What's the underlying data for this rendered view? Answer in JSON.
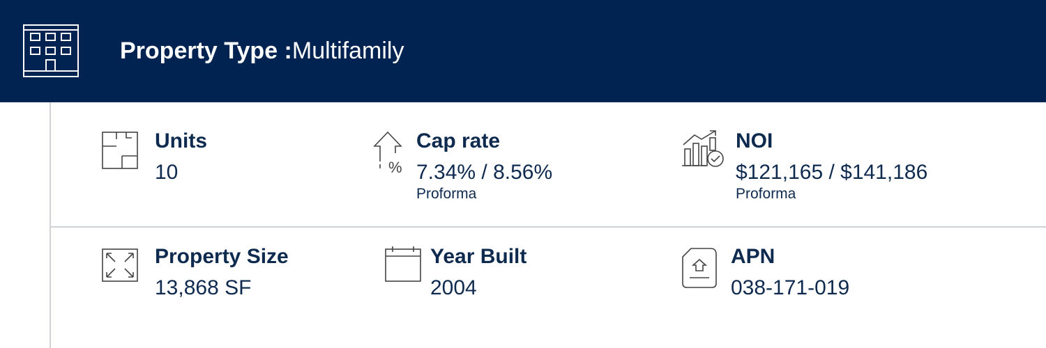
{
  "header": {
    "label": "Property Type :",
    "value": "Multifamily"
  },
  "rows": [
    [
      {
        "label": "Units",
        "value": "10"
      },
      {
        "label": "Cap rate",
        "value": "7.34% / 8.56%",
        "note": "Proforma"
      },
      {
        "label": "NOI",
        "value": "$121,165 / $141,186",
        "note": "Proforma"
      }
    ],
    [
      {
        "label": "Property Size",
        "value": "13,868 SF"
      },
      {
        "label": "Year Built",
        "value": "2004"
      },
      {
        "label": "APN",
        "value": "038-171-019"
      }
    ]
  ]
}
